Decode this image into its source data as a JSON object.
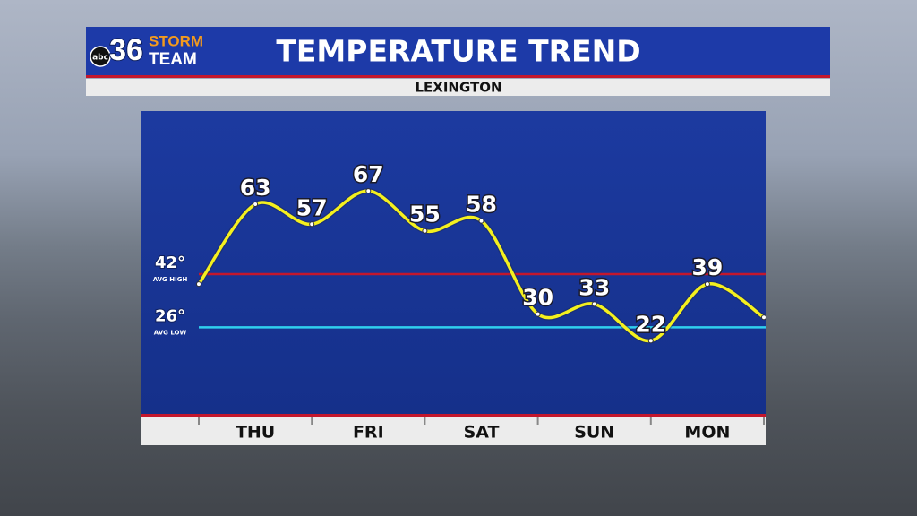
{
  "branding": {
    "network": "abc",
    "channel": "36",
    "line1": "STORM",
    "line2": "TEAM"
  },
  "chart_data": {
    "type": "line",
    "title": "TEMPERATURE TREND",
    "subtitle": "LEXINGTON",
    "categories": [
      null,
      "THU",
      null,
      "FRI",
      null,
      "SAT",
      null,
      "SUN",
      null,
      "MON",
      null
    ],
    "series": [
      {
        "color": "#f4f01e",
        "values": [
          39,
          63,
          57,
          67,
          55,
          58,
          30,
          33,
          22,
          39,
          29
        ],
        "value_labels": [
          null,
          "63",
          "57",
          "67",
          "55",
          "58",
          "30",
          "33",
          "22",
          "39",
          null
        ]
      }
    ],
    "ylim": [
      0,
      91
    ],
    "reference_lines": [
      {
        "value": 42,
        "label": "42°",
        "sublabel": "AVG HIGH",
        "color": "#c4172c"
      },
      {
        "value": 26,
        "label": "26°",
        "sublabel": "AVG LOW",
        "color": "#2fd0ee"
      }
    ]
  }
}
